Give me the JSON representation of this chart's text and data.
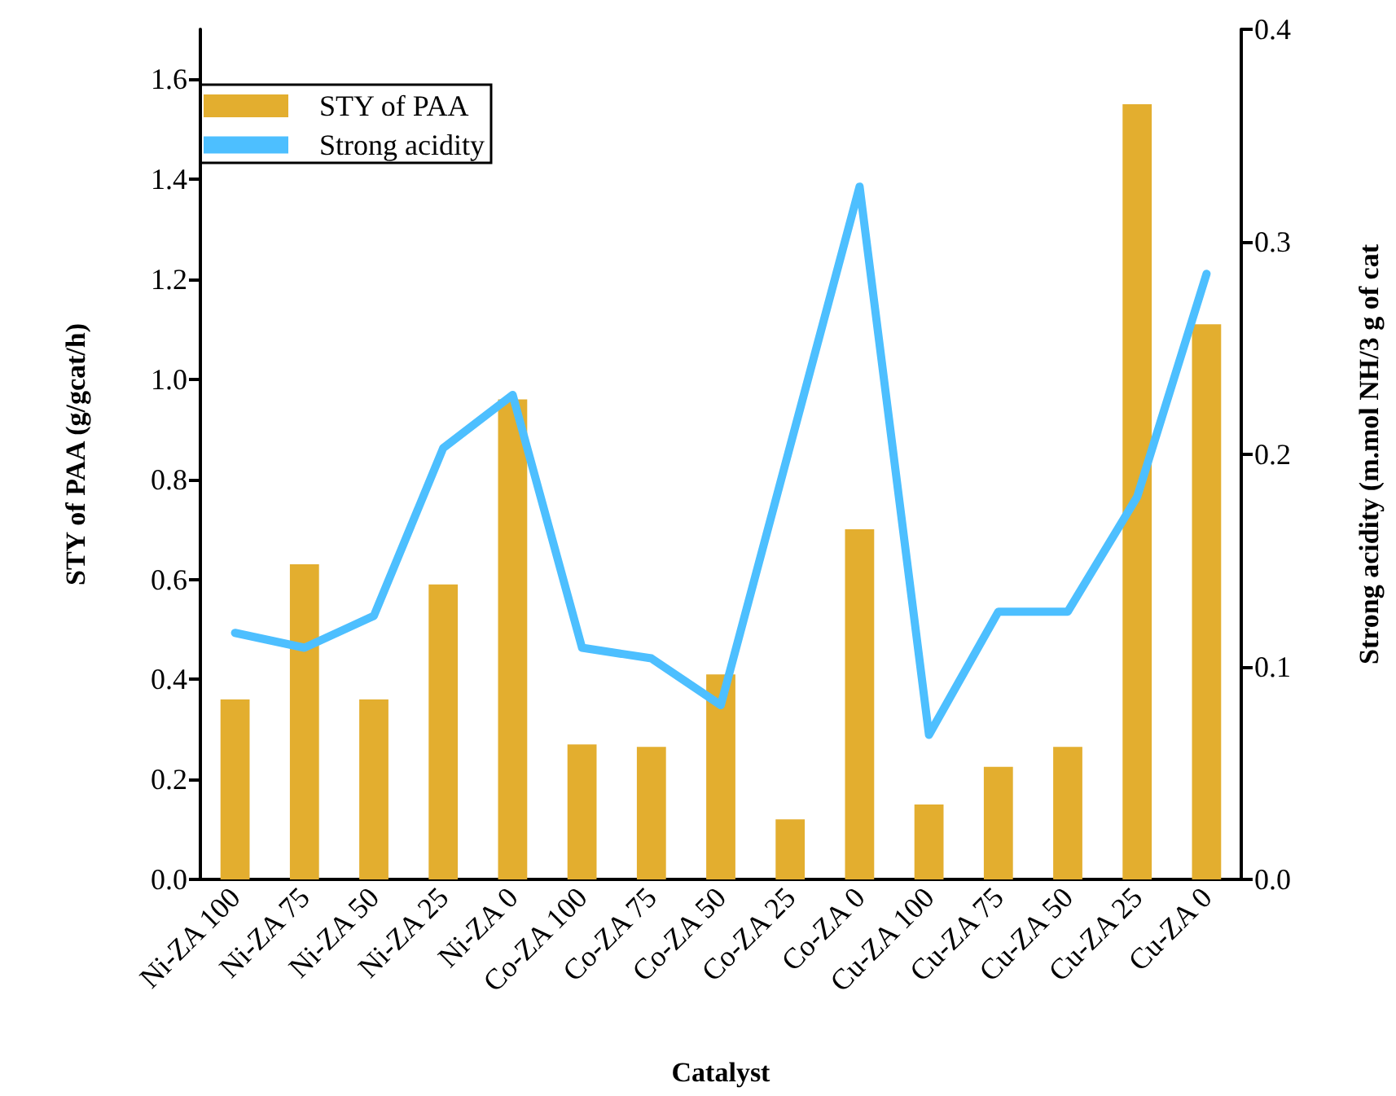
{
  "chart_data": {
    "type": "bar",
    "xlabel": "Catalyst",
    "ylabel": "STY of PAA (g/gcat/h)",
    "y2label": "Strong acidity (m.mol NH/3 g of cat",
    "categories": [
      "Ni-ZA 100",
      "Ni-ZA 75",
      "Ni-ZA 50",
      "Ni-ZA 25",
      "Ni-ZA 0",
      "Co-ZA 100",
      "Co-ZA 75",
      "Co-ZA 50",
      "Co-ZA 25",
      "Co-ZA 0",
      "Cu-ZA 100",
      "Cu-ZA 75",
      "Cu-ZA 50",
      "Cu-ZA 25",
      "Cu-ZA 0"
    ],
    "series": [
      {
        "name": "STY of PAA",
        "color": "#e3ae2f",
        "values": [
          0.36,
          0.63,
          0.36,
          0.59,
          0.96,
          0.27,
          0.265,
          0.41,
          0.12,
          0.7,
          0.15,
          0.225,
          0.265,
          1.55,
          1.11
        ]
      },
      {
        "name": "Strong acidity",
        "type": "line",
        "axis": "y2",
        "color": "#4dbfff",
        "values": [
          0.116,
          0.109,
          0.124,
          0.203,
          0.228,
          0.109,
          0.104,
          0.082,
          0.204,
          0.326,
          0.068,
          0.126,
          0.126,
          0.18,
          0.285
        ]
      }
    ],
    "ylim": [
      0,
      1.7
    ],
    "yticks": [
      {
        "value": 0,
        "label": "0.0"
      },
      0.2,
      0.4,
      0.6,
      0.8,
      {
        "value": 1,
        "label": "1.0"
      },
      1.2,
      1.4,
      1.6
    ],
    "y2lim": [
      0,
      0.4
    ],
    "y2ticks": [
      {
        "value": 0,
        "label": "0.0"
      },
      0.1,
      0.2,
      0.3,
      0.4
    ],
    "grid": false,
    "legend": "top left",
    "marker": "none",
    "line_style": "solid"
  }
}
